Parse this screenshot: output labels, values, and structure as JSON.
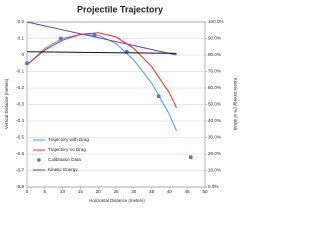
{
  "chart_data": {
    "type": "line",
    "title": "Projectile Trajectory",
    "x_label": "Horizontal Distance (meters)",
    "y_label": "Vertical Distance (meters)",
    "y2_label": "Kinetic Energy (% of initial)",
    "xlim": [
      0,
      50
    ],
    "xticks": [
      0,
      5,
      10,
      15,
      20,
      25,
      30,
      35,
      40,
      45,
      50
    ],
    "ylim": [
      -0.8,
      0.2
    ],
    "yticks": [
      -0.8,
      -0.7,
      -0.6,
      -0.5,
      -0.4,
      -0.3,
      -0.2,
      -0.1,
      0,
      0.1,
      0.2
    ],
    "y2lim": [
      0,
      100
    ],
    "y2ticks": [
      {
        "value": 0,
        "label": "0.0%"
      },
      {
        "value": 10,
        "label": "10.0%"
      },
      {
        "value": 20,
        "label": "20.0%"
      },
      {
        "value": 30,
        "label": "30.0%"
      },
      {
        "value": 40,
        "label": "40.0%"
      },
      {
        "value": 50,
        "label": "50.0%"
      },
      {
        "value": 60,
        "label": "60.0%"
      },
      {
        "value": 70,
        "label": "70.0%"
      },
      {
        "value": 80,
        "label": "80.0%"
      },
      {
        "value": 90,
        "label": "90.0%"
      },
      {
        "value": 100,
        "label": "100.0%"
      }
    ],
    "grid": true,
    "legend": "lower left",
    "series": [
      {
        "name": "Trajectory with Drag",
        "kind": "line",
        "color": "#4f9ad8",
        "x": [
          0,
          5,
          10,
          15,
          20,
          25,
          30,
          35,
          40,
          42
        ],
        "values": [
          -0.06,
          0.04,
          0.1,
          0.125,
          0.12,
          0.07,
          -0.03,
          -0.17,
          -0.36,
          -0.46
        ]
      },
      {
        "name": "Trajectory no Drag",
        "kind": "line",
        "color": "#e0302a",
        "x": [
          0,
          5,
          10,
          15,
          20,
          25,
          30,
          35,
          40,
          42
        ],
        "values": [
          -0.06,
          0.03,
          0.09,
          0.125,
          0.135,
          0.11,
          0.04,
          -0.07,
          -0.23,
          -0.32
        ]
      },
      {
        "name": "Calibration Data",
        "kind": "scatter",
        "color": "#4a7fc8",
        "x": [
          0,
          9.5,
          19,
          28,
          37,
          46
        ],
        "values": [
          -0.05,
          0.1,
          0.12,
          0.02,
          -0.25,
          -0.62
        ]
      },
      {
        "name": "Kinetic Energy",
        "kind": "line",
        "color": "#7a3fa0",
        "axis": "y2",
        "x": [
          0,
          42
        ],
        "values": [
          100,
          80
        ]
      },
      {
        "kind": "line",
        "color": "#111111",
        "x": [
          0,
          42
        ],
        "values": [
          0.02,
          0.01
        ]
      }
    ]
  }
}
